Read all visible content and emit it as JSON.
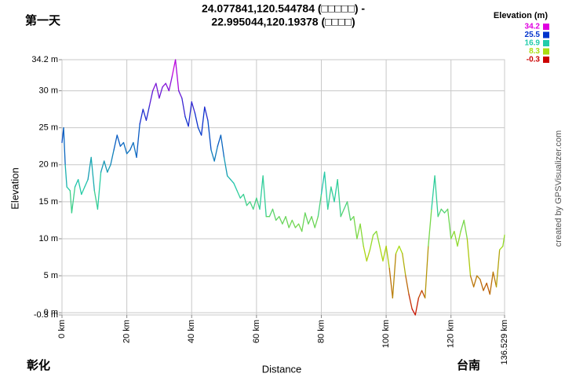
{
  "chart_data": {
    "type": "line",
    "title": [
      "24.077841,120.544784 (□□□□□) -",
      "22.995044,120.19378 (□□□□)"
    ],
    "corner_labels": {
      "top_left": "第一天",
      "bottom_left": "彰化",
      "bottom_right": "台南"
    },
    "credit": "created by GPSVisualizer.com",
    "x_label": "Distance",
    "y_label": "Elevation",
    "xlim": [
      0,
      136.529
    ],
    "ylim": [
      -0.3,
      34.2
    ],
    "xticks": [
      {
        "value": 0,
        "label": "0 km"
      },
      {
        "value": 20,
        "label": "20 km"
      },
      {
        "value": 40,
        "label": "40 km"
      },
      {
        "value": 60,
        "label": "60 km"
      },
      {
        "value": 80,
        "label": "80 km"
      },
      {
        "value": 100,
        "label": "100 km"
      },
      {
        "value": 120,
        "label": "120 km"
      },
      {
        "value": 136.529,
        "label": "136.529 km"
      }
    ],
    "yticks": [
      {
        "value": -0.3,
        "label": "-0.3 m"
      },
      {
        "value": 0,
        "label": "0 m"
      },
      {
        "value": 5,
        "label": "5 m"
      },
      {
        "value": 10,
        "label": "10 m"
      },
      {
        "value": 15,
        "label": "15 m"
      },
      {
        "value": 20,
        "label": "20 m"
      },
      {
        "value": 25,
        "label": "25 m"
      },
      {
        "value": 30,
        "label": "30 m"
      },
      {
        "value": 34.2,
        "label": "34.2 m"
      }
    ],
    "grid": true,
    "legend": {
      "title": "Elevation (m)",
      "position": "top-right",
      "entries": [
        {
          "value": 34.2,
          "color": "#e000e0"
        },
        {
          "value": 25.5,
          "color": "#0033cc"
        },
        {
          "value": 16.9,
          "color": "#22ccaa"
        },
        {
          "value": 8.3,
          "color": "#aadd11"
        },
        {
          "value": -0.3,
          "color": "#cc0000"
        }
      ]
    },
    "x": [
      0,
      0.5,
      1,
      1.5,
      2.5,
      3,
      4,
      5,
      6,
      7,
      8,
      9,
      10,
      11,
      12,
      13,
      14,
      15,
      16,
      17,
      18,
      19,
      20,
      21,
      22,
      23,
      24,
      25,
      26,
      27,
      28,
      29,
      30,
      31,
      32,
      33,
      34,
      35,
      36,
      37,
      38,
      39,
      40,
      41,
      42,
      43,
      44,
      45,
      46,
      47,
      48,
      49,
      50,
      51,
      52,
      53,
      54,
      55,
      56,
      57,
      58,
      59,
      60,
      61,
      62,
      63,
      64,
      65,
      66,
      67,
      68,
      69,
      70,
      71,
      72,
      73,
      74,
      75,
      76,
      77,
      78,
      79,
      80,
      81,
      82,
      83,
      84,
      85,
      86,
      87,
      88,
      89,
      90,
      91,
      92,
      93,
      94,
      95,
      96,
      97,
      98,
      99,
      100,
      101,
      102,
      103,
      104,
      105,
      106,
      107,
      108,
      109,
      110,
      111,
      112,
      113,
      114,
      115,
      116,
      117,
      118,
      119,
      120,
      121,
      122,
      123,
      124,
      125,
      126,
      127,
      128,
      129,
      130,
      131,
      132,
      133,
      134,
      135,
      136,
      136.529
    ],
    "series": [
      {
        "name": "Elevation",
        "values": [
          23,
          25,
          20,
          17,
          16.5,
          13.5,
          17,
          18,
          16,
          17,
          18,
          21,
          16.5,
          14,
          19,
          20.5,
          19,
          20,
          22,
          24,
          22.5,
          23,
          21.5,
          22,
          23,
          21,
          25.5,
          27.5,
          26,
          28,
          30,
          31,
          29,
          30.5,
          31,
          30,
          32,
          34.2,
          30,
          29,
          26.5,
          25.2,
          28.5,
          27,
          25,
          24,
          27.8,
          26,
          22,
          20.5,
          22.5,
          24,
          21,
          18.5,
          18,
          17.5,
          16.5,
          15.5,
          16,
          14.5,
          15,
          14,
          15.5,
          14,
          18.5,
          13,
          13,
          14,
          12.5,
          13,
          12,
          13,
          11.5,
          12.5,
          11.5,
          12,
          11,
          13.5,
          12,
          13,
          11.5,
          13,
          16,
          19,
          14,
          17,
          15,
          18,
          13,
          14,
          15,
          12.5,
          13,
          10,
          12,
          9,
          7,
          8.5,
          10.5,
          11,
          9,
          7,
          9,
          6,
          2,
          8,
          9,
          8,
          5,
          2.5,
          0.5,
          -0.3,
          2,
          3,
          2,
          9,
          14,
          18.5,
          13,
          14,
          13.5,
          14,
          10,
          11,
          9,
          11,
          12.5,
          10,
          5,
          3.5,
          5,
          4.5,
          3,
          4,
          2.5,
          5.5,
          3.5,
          8.5,
          9,
          10.5
        ]
      }
    ]
  }
}
